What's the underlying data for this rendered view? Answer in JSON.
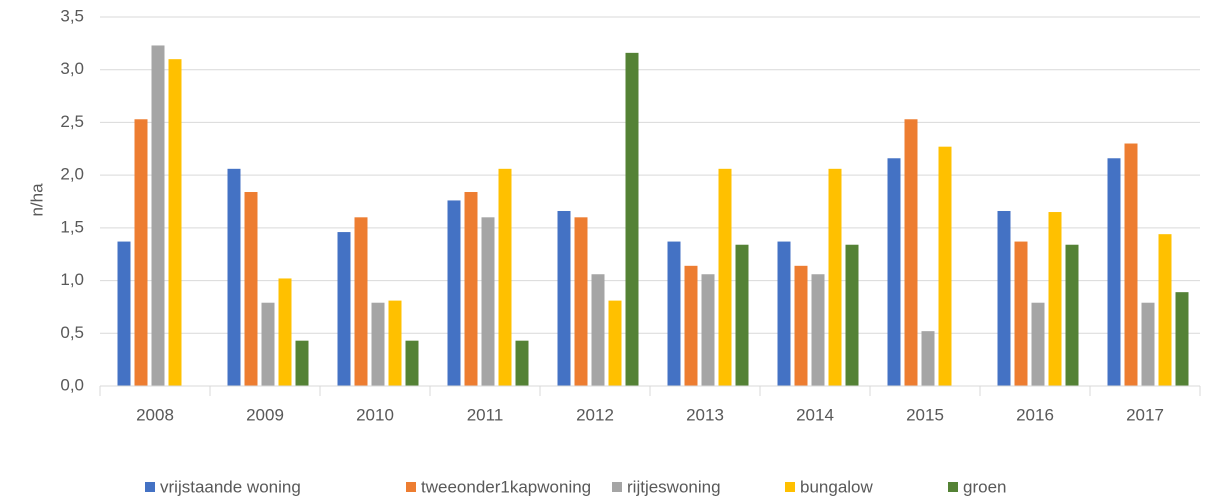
{
  "chart_data": {
    "type": "bar",
    "y_label": "n/ha",
    "categories": [
      "2008",
      "2009",
      "2010",
      "2011",
      "2012",
      "2013",
      "2014",
      "2015",
      "2016",
      "2017"
    ],
    "series": [
      {
        "name": "vrijstaande woning",
        "color": "#4472c4",
        "values": [
          1.37,
          2.06,
          1.46,
          1.76,
          1.66,
          1.37,
          1.37,
          2.16,
          1.66,
          2.16
        ]
      },
      {
        "name": "tweeonder1kapwoning",
        "color": "#ed7d31",
        "values": [
          2.53,
          1.84,
          1.6,
          1.84,
          1.6,
          1.14,
          1.14,
          2.53,
          1.37,
          2.3
        ]
      },
      {
        "name": "rijtjeswoning",
        "color": "#a5a5a5",
        "values": [
          3.23,
          0.79,
          0.79,
          1.6,
          1.06,
          1.06,
          1.06,
          0.52,
          0.79,
          0.79
        ]
      },
      {
        "name": "bungalow",
        "color": "#ffc000",
        "values": [
          3.1,
          1.02,
          0.81,
          2.06,
          0.81,
          2.06,
          2.06,
          2.27,
          1.65,
          1.44
        ]
      },
      {
        "name": "groen",
        "color": "#548235",
        "values": [
          null,
          0.43,
          0.43,
          0.43,
          3.16,
          1.34,
          1.34,
          null,
          1.34,
          0.89
        ]
      }
    ],
    "ylim": [
      0,
      3.5
    ],
    "yticks": [
      {
        "value": 0,
        "label": "0,0"
      },
      {
        "value": 0.5,
        "label": "0,5"
      },
      {
        "value": 1,
        "label": "1,0"
      },
      {
        "value": 1.5,
        "label": "1,5"
      },
      {
        "value": 2,
        "label": "2,0"
      },
      {
        "value": 2.5,
        "label": "2,5"
      },
      {
        "value": 3,
        "label": "3,0"
      },
      {
        "value": 3.5,
        "label": "3,5"
      }
    ],
    "grid": true,
    "legend": "bottom"
  }
}
